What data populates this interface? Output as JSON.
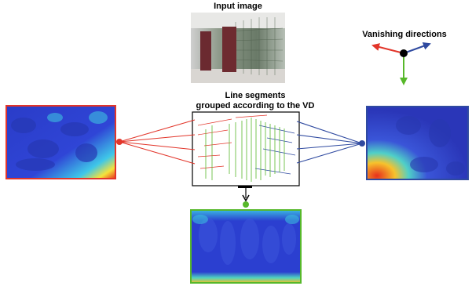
{
  "labels": {
    "input_image": "Input image",
    "vanishing_directions": "Vanishing directions",
    "segments_line1": "Line segments",
    "segments_line2": "grouped according to the VD"
  },
  "colors": {
    "red": "#e2352a",
    "blue": "#2f4aa0",
    "green": "#57b82a",
    "black": "#000000"
  },
  "icons": {
    "vd_axes": "three-arrow-axes-icon",
    "down_arrow": "chevron-down-icon"
  }
}
